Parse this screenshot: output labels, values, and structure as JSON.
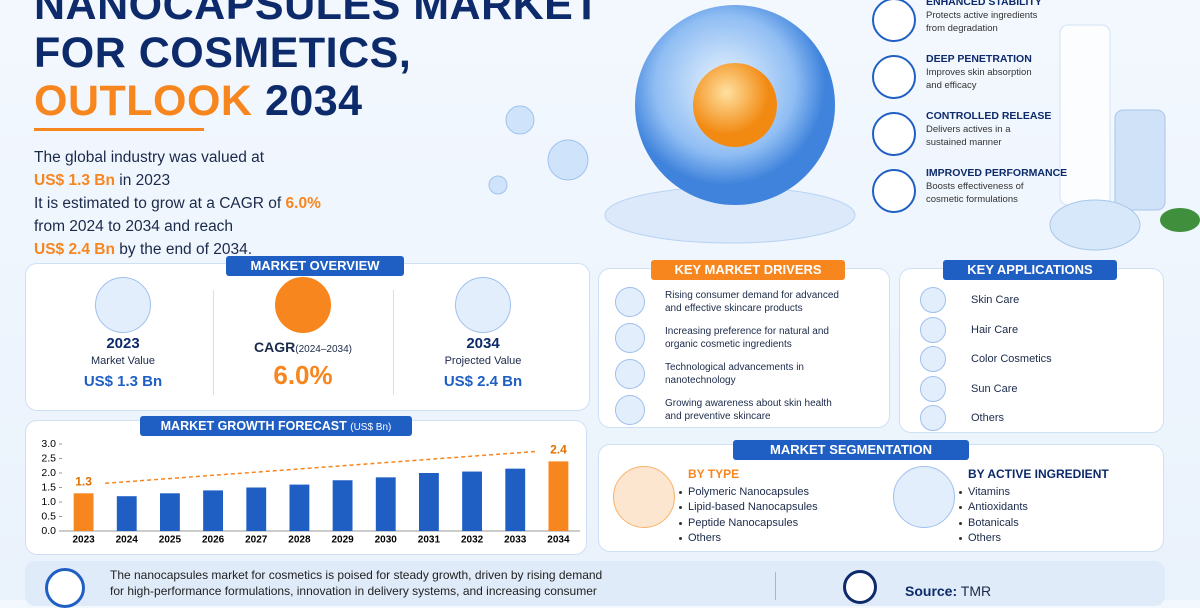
{
  "header": {
    "title_lines": [
      "NANOCAPSULES MARKET",
      "FOR COSMETICS,"
    ],
    "title_accent": "OUTLOOK",
    "title_year": "2034"
  },
  "intro": [
    [
      {
        "text": "The global industry was valued at",
        "emphasis": false
      }
    ],
    [
      {
        "text": "US$ 1.3 Bn",
        "emphasis": true
      },
      {
        "text": " in 2023",
        "emphasis": false
      }
    ],
    [
      {
        "text": "It is estimated to grow at a CAGR of ",
        "emphasis": false
      },
      {
        "text": "6.0%",
        "emphasis": true
      }
    ],
    [
      {
        "text": "from 2024 to 2034 and reach",
        "emphasis": false
      }
    ],
    [
      {
        "text": "US$ 2.4 Bn",
        "emphasis": true
      },
      {
        "text": " by the end of 2034.",
        "emphasis": false
      }
    ]
  ],
  "benefits": [
    {
      "title": "ENHANCED STABILITY",
      "desc": [
        "Protects active ingredients",
        "from degradation"
      ]
    },
    {
      "title": "DEEP PENETRATION",
      "desc": [
        "Improves skin absorption",
        "and efficacy"
      ]
    },
    {
      "title": "CONTROLLED RELEASE",
      "desc": [
        "Delivers actives in a",
        "sustained manner"
      ]
    },
    {
      "title": "IMPROVED PERFORMANCE",
      "desc": [
        "Boosts effectiveness of",
        "cosmetic formulations"
      ]
    }
  ],
  "overview": {
    "heading": "MARKET OVERVIEW",
    "cards": [
      {
        "top": "2023",
        "sub": "Market Value",
        "value": "US$ 1.3 Bn"
      },
      {
        "top": "CAGR",
        "top_note": "(2024–2034)",
        "value": "6.0%"
      },
      {
        "top": "2034",
        "sub": "Projected Value",
        "value": "US$ 2.4 Bn"
      }
    ]
  },
  "drivers": {
    "heading": "KEY MARKET DRIVERS",
    "items": [
      [
        "Rising consumer demand for advanced",
        "and effective skincare products"
      ],
      [
        "Increasing preference for natural and",
        "organic cosmetic ingredients"
      ],
      [
        "Technological advancements in",
        "nanotechnology"
      ],
      [
        "Growing awareness about skin health",
        "and preventive skincare"
      ]
    ]
  },
  "applications": {
    "heading": "KEY APPLICATIONS",
    "items": [
      "Skin Care",
      "Hair Care",
      "Color Cosmetics",
      "Sun Care",
      "Others"
    ]
  },
  "chart_data": {
    "type": "bar",
    "title": "MARKET GROWTH FORECAST",
    "title_note": "(US$ Bn)",
    "categories": [
      "2023",
      "2024",
      "2025",
      "2026",
      "2027",
      "2028",
      "2029",
      "2030",
      "2031",
      "2032",
      "2033",
      "2034"
    ],
    "series": [
      {
        "name": "Market Value",
        "color": "#1f5fc4",
        "values": [
          1.3,
          1.2,
          1.3,
          1.4,
          1.5,
          1.6,
          1.75,
          1.85,
          2.0,
          2.05,
          2.15,
          2.4
        ]
      }
    ],
    "highlight_color": "#f7861e",
    "value_labels": [
      "1.3",
      null,
      null,
      null,
      null,
      null,
      null,
      null,
      null,
      null,
      null,
      "2.4"
    ],
    "ylim": [
      0,
      3
    ],
    "yticks": [
      {
        "value": 0,
        "label": "0.0"
      },
      0.5,
      {
        "value": 1,
        "label": "1.0"
      },
      1.5,
      {
        "value": 2,
        "label": "2.0"
      },
      2.5,
      {
        "value": 3,
        "label": "3.0"
      }
    ]
  },
  "segmentation": {
    "heading": "MARKET SEGMENTATION",
    "groups": [
      {
        "title": "BY TYPE",
        "items": [
          "Polymeric Nanocapsules",
          "Lipid-based Nanocapsules",
          "Peptide Nanocapsules",
          "Others"
        ]
      },
      {
        "title": "BY ACTIVE INGREDIENT",
        "items": [
          "Vitamins",
          "Antioxidants",
          "Botanicals",
          "Others"
        ]
      }
    ]
  },
  "footer": {
    "text": [
      "The nanocapsules market for cosmetics is poised for steady growth, driven by rising demand",
      "for high-performance formulations, innovation in delivery systems, and increasing consumer"
    ],
    "source_label": "Source:",
    "source": "TMR"
  }
}
